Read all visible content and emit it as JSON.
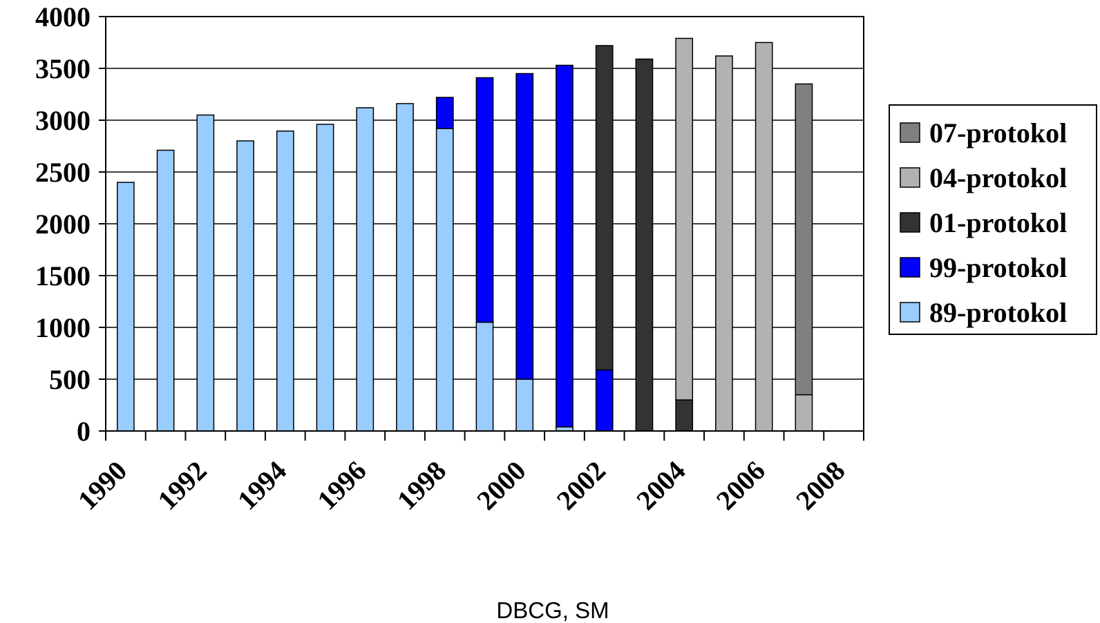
{
  "chart_data": {
    "type": "bar",
    "stacked": true,
    "categories": [
      "1990",
      "1991",
      "1992",
      "1993",
      "1994",
      "1995",
      "1996",
      "1997",
      "1998",
      "1999",
      "2000",
      "2001",
      "2002",
      "2003",
      "2004",
      "2005",
      "2006",
      "2007",
      "2008"
    ],
    "x_tick_labels": [
      "1990",
      "1992",
      "1994",
      "1996",
      "1998",
      "2000",
      "2002",
      "2004",
      "2006",
      "2008"
    ],
    "ylim": [
      0,
      4000
    ],
    "y_ticks": [
      "0",
      "500",
      "1000",
      "1500",
      "2000",
      "2500",
      "3000",
      "3500",
      "4000"
    ],
    "grid": true,
    "legend_position": "right",
    "series": [
      {
        "name": "89-protokol",
        "color": "#99ccff",
        "values": [
          2400,
          2710,
          3050,
          2800,
          2895,
          2960,
          3120,
          3160,
          2920,
          1050,
          500,
          40,
          0,
          0,
          0,
          0,
          0,
          0,
          0
        ]
      },
      {
        "name": "99-protokol",
        "color": "#0000ff",
        "values": [
          0,
          0,
          0,
          0,
          0,
          0,
          0,
          0,
          300,
          2360,
          2950,
          3490,
          590,
          0,
          0,
          0,
          0,
          0,
          0
        ]
      },
      {
        "name": "01-protokol",
        "color": "#333333",
        "values": [
          0,
          0,
          0,
          0,
          0,
          0,
          0,
          0,
          0,
          0,
          0,
          0,
          3130,
          3590,
          300,
          0,
          0,
          0,
          0
        ]
      },
      {
        "name": "04-protokol",
        "color": "#b2b2b2",
        "values": [
          0,
          0,
          0,
          0,
          0,
          0,
          0,
          0,
          0,
          0,
          0,
          0,
          0,
          0,
          3490,
          3620,
          3750,
          350,
          0
        ]
      },
      {
        "name": "07-protokol",
        "color": "#808080",
        "values": [
          0,
          0,
          0,
          0,
          0,
          0,
          0,
          0,
          0,
          0,
          0,
          0,
          0,
          0,
          0,
          0,
          0,
          3000,
          0
        ]
      }
    ],
    "legend_order": [
      "07-protokol",
      "04-protokol",
      "01-protokol",
      "99-protokol",
      "89-protokol"
    ]
  },
  "footer": {
    "source": "DBCG, SM"
  }
}
